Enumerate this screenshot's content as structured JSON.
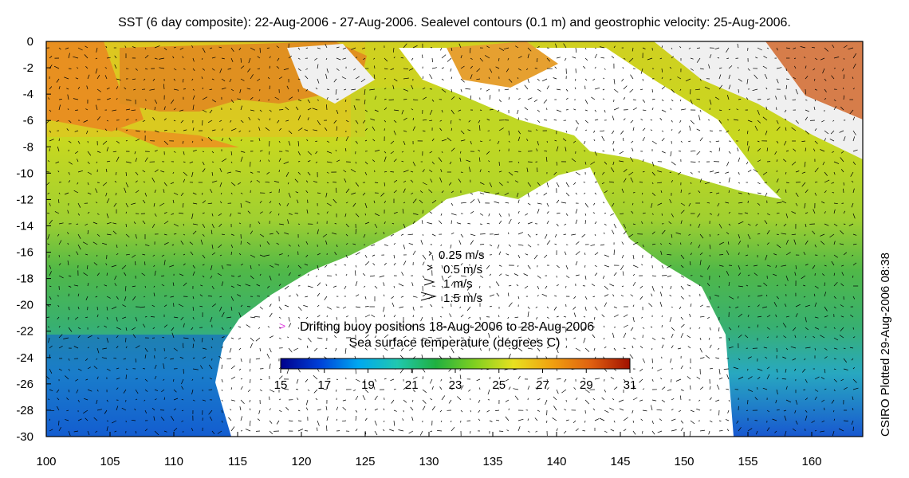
{
  "title": "SST (6 day composite): 22-Aug-2006 - 27-Aug-2006. Sealevel contours (0.1 m) and geostrophic velocity: 25-Aug-2006.",
  "side_label": "CSIRO Plotted 29-Aug-2006 08:38",
  "map": {
    "lon_range": [
      100,
      164
    ],
    "lat_range": [
      -30,
      0
    ],
    "lon_ticks": [
      "100",
      "105",
      "110",
      "115",
      "120",
      "125",
      "130",
      "135",
      "140",
      "145",
      "150",
      "155",
      "160"
    ],
    "lat_ticks": [
      "0",
      "-2",
      "-4",
      "-6",
      "-8",
      "-10",
      "-12",
      "-14",
      "-16",
      "-18",
      "-20",
      "-22",
      "-24",
      "-26",
      "-28",
      "-30"
    ]
  },
  "velocity_legend": [
    {
      "speed": 0.25,
      "label": "0.25 m/s"
    },
    {
      "speed": 0.5,
      "label": "0.5 m/s"
    },
    {
      "speed": 1,
      "label": "1 m/s"
    },
    {
      "speed": 1.5,
      "label": "1.5 m/s"
    }
  ],
  "buoy_legend": {
    "marker": ">",
    "label": "Drifting buoy positions 18-Aug-2006 to 28-Aug-2006",
    "color": "#e040e0"
  },
  "colorbar": {
    "title": "Sea surface temperature (degrees C)",
    "min": 15,
    "max": 31,
    "tick_labels": [
      "15",
      "17",
      "19",
      "21",
      "23",
      "25",
      "27",
      "29",
      "31"
    ],
    "colors": [
      "#00008c",
      "#0040d8",
      "#00a8f0",
      "#20c8b0",
      "#20b040",
      "#80d020",
      "#e8e020",
      "#f0a010",
      "#e06010",
      "#a01000"
    ]
  }
}
